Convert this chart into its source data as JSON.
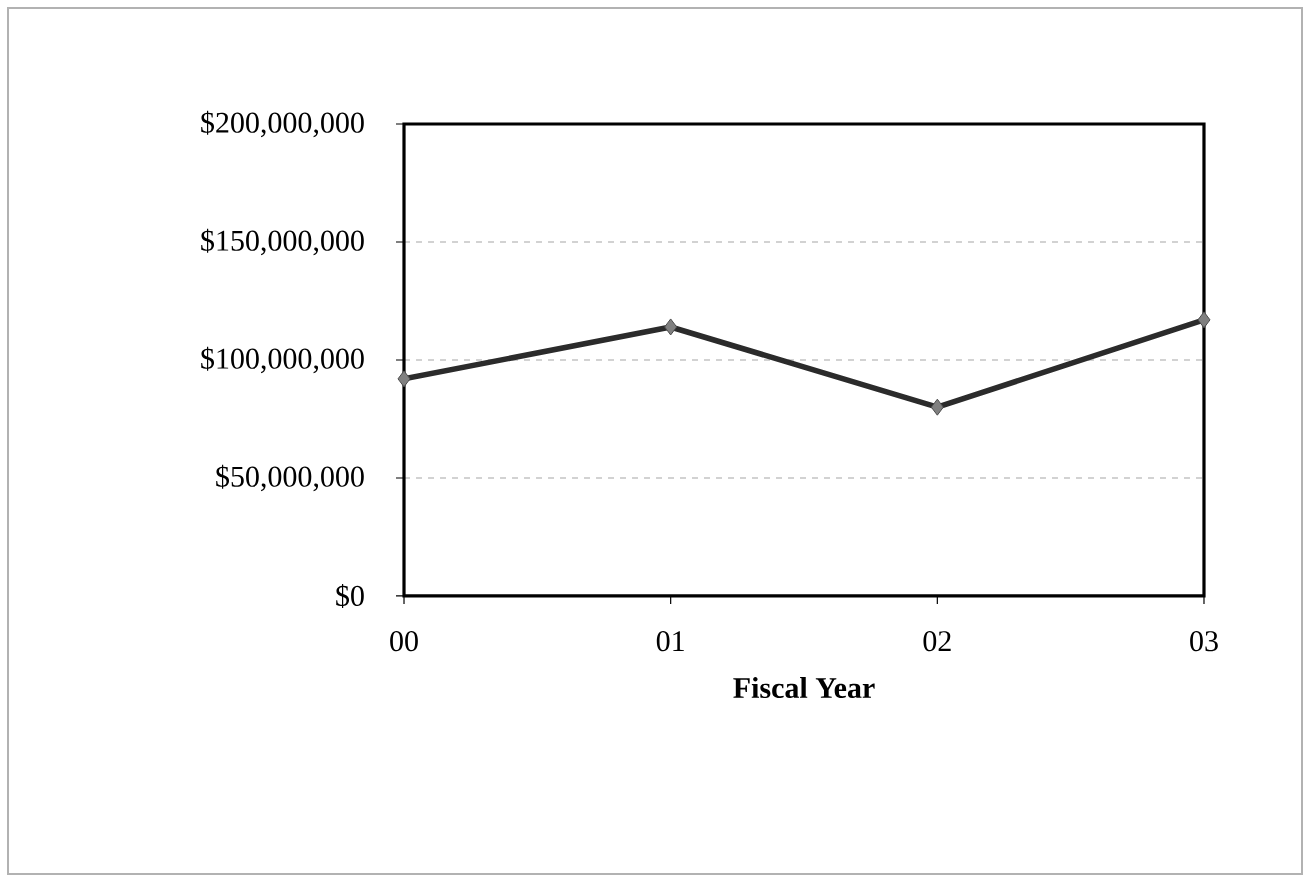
{
  "chart_data": {
    "type": "line",
    "xlabel": "Fiscal Year",
    "categories": [
      "00",
      "01",
      "02",
      "03"
    ],
    "series": [
      {
        "color": "#2b2b2b",
        "values": [
          92000000,
          114000000,
          80000000,
          117000000
        ]
      }
    ],
    "ylim": [
      0,
      200000000
    ],
    "yticks": [
      {
        "value": 0,
        "label": "$0"
      },
      {
        "value": 50000000,
        "label": "$50,000,000"
      },
      {
        "value": 100000000,
        "label": "$100,000,000"
      },
      {
        "value": 150000000,
        "label": "$150,000,000"
      },
      {
        "value": 200000000,
        "label": "$200,000,000"
      }
    ],
    "grid": "y",
    "marker": "diamond",
    "line_style": "solid"
  }
}
